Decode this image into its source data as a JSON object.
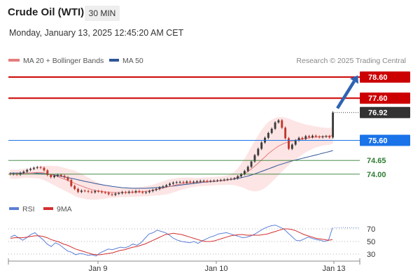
{
  "header": {
    "title": "Crude Oil (WTI)",
    "timeframe": "30 MIN",
    "datetime": "Monday, January 13, 2025 12:45:20 AM CET"
  },
  "legend": {
    "ma20_label": "MA 20 + Bollinger Bands",
    "ma50_label": "MA 50",
    "copyright": "Research © 2025 Trading Central",
    "rsi_label": "RSI",
    "rsi_ma_label": "9MA"
  },
  "colors": {
    "up_candle": "#3d3d3d",
    "down_candle": "#c0392b",
    "ma20": "#e47d7d",
    "ma50": "#2f5597",
    "bollinger_fill": "#fde0e0",
    "resistance": "#cc0000",
    "pivot": "#1a73e8",
    "support": "#2e7d32",
    "forecast_arrow": "#2e62b3",
    "rsi": "#5b7fd6",
    "rsi_ma": "#d32f2f"
  },
  "chart_data": {
    "type": "candlestick",
    "ylim": [
      72.8,
      79.0
    ],
    "x_ticks": [
      "Jan 9",
      "Jan 10",
      "Jan 13"
    ],
    "levels": [
      {
        "value": 78.6,
        "label": "78.60",
        "kind": "resistance"
      },
      {
        "value": 77.6,
        "label": "77.60",
        "kind": "resistance"
      },
      {
        "value": 76.92,
        "label": "76.92",
        "kind": "last"
      },
      {
        "value": 75.6,
        "label": "75.60",
        "kind": "pivot"
      },
      {
        "value": 74.65,
        "label": "74.65",
        "kind": "support"
      },
      {
        "value": 74.0,
        "label": "74.00",
        "kind": "support"
      }
    ],
    "close": [
      74.0,
      74.02,
      73.98,
      74.06,
      74.12,
      74.2,
      74.25,
      74.3,
      74.33,
      74.3,
      74.18,
      73.96,
      73.86,
      73.92,
      73.97,
      73.92,
      73.85,
      73.72,
      73.44,
      73.3,
      73.16,
      73.22,
      73.2,
      73.17,
      73.14,
      73.2,
      73.18,
      73.14,
      73.12,
      73.05,
      73.02,
      73.08,
      73.1,
      73.15,
      73.12,
      73.17,
      73.14,
      73.2,
      73.16,
      73.12,
      73.15,
      73.2,
      73.25,
      73.3,
      73.37,
      73.42,
      73.48,
      73.55,
      73.6,
      73.62,
      73.63,
      73.6,
      73.65,
      73.62,
      73.64,
      73.66,
      73.68,
      73.68,
      73.66,
      73.68,
      73.69,
      73.7,
      73.72,
      73.74,
      73.76,
      73.78,
      73.8,
      73.9,
      74.0,
      74.15,
      74.35,
      74.6,
      74.9,
      75.2,
      75.5,
      75.72,
      75.95,
      76.15,
      76.45,
      76.55,
      76.2,
      75.7,
      75.2,
      75.4,
      75.6,
      75.72,
      75.67,
      75.8,
      75.75,
      75.82,
      75.78,
      75.75,
      75.78,
      75.8,
      75.74,
      76.92
    ],
    "open": [
      74.03,
      74.0,
      74.02,
      73.98,
      74.06,
      74.12,
      74.2,
      74.25,
      74.3,
      74.33,
      74.3,
      74.18,
      73.96,
      73.86,
      73.92,
      73.97,
      73.92,
      73.85,
      73.72,
      73.44,
      73.3,
      73.16,
      73.22,
      73.2,
      73.17,
      73.14,
      73.2,
      73.18,
      73.14,
      73.12,
      73.05,
      73.02,
      73.08,
      73.1,
      73.15,
      73.12,
      73.17,
      73.14,
      73.2,
      73.16,
      73.12,
      73.15,
      73.2,
      73.25,
      73.3,
      73.37,
      73.42,
      73.48,
      73.55,
      73.6,
      73.62,
      73.63,
      73.6,
      73.65,
      73.62,
      73.64,
      73.66,
      73.68,
      73.68,
      73.66,
      73.68,
      73.69,
      73.7,
      73.72,
      73.74,
      73.76,
      73.78,
      73.8,
      73.9,
      74.0,
      74.15,
      74.35,
      74.6,
      74.9,
      75.2,
      75.5,
      75.72,
      75.95,
      76.15,
      76.45,
      76.55,
      76.2,
      75.7,
      75.2,
      75.4,
      75.6,
      75.72,
      75.67,
      75.8,
      75.75,
      75.82,
      75.78,
      75.75,
      75.78,
      75.8,
      75.74
    ],
    "ma20": [
      74.0,
      74.0,
      74.0,
      74.02,
      74.04,
      74.05,
      74.06,
      74.07,
      74.08,
      74.08,
      74.06,
      74.02,
      73.98,
      73.93,
      73.88,
      73.82,
      73.76,
      73.7,
      73.64,
      73.57,
      73.5,
      73.44,
      73.38,
      73.32,
      73.27,
      73.23,
      73.2,
      73.18,
      73.16,
      73.15,
      73.14,
      73.13,
      73.13,
      73.13,
      73.13,
      73.14,
      73.14,
      73.15,
      73.16,
      73.17,
      73.19,
      73.21,
      73.24,
      73.27,
      73.3,
      73.34,
      73.38,
      73.42,
      73.46,
      73.5,
      73.53,
      73.56,
      73.58,
      73.6,
      73.61,
      73.62,
      73.63,
      73.64,
      73.65,
      73.66,
      73.67,
      73.68,
      73.69,
      73.7,
      73.72,
      73.75,
      73.8,
      73.86,
      73.94,
      74.03,
      74.13,
      74.25,
      74.38,
      74.52,
      74.67,
      74.82,
      74.97,
      75.1,
      75.22,
      75.33,
      75.41,
      75.48,
      75.53,
      75.57,
      75.6,
      75.63,
      75.66,
      75.69,
      75.72,
      75.74,
      75.76,
      75.77,
      75.78,
      75.79,
      75.79,
      75.85
    ],
    "ma50": [
      74.05,
      74.05,
      74.05,
      74.05,
      74.05,
      74.05,
      74.05,
      74.05,
      74.04,
      74.03,
      74.02,
      74.0,
      73.98,
      73.96,
      73.93,
      73.9,
      73.87,
      73.84,
      73.8,
      73.77,
      73.73,
      73.7,
      73.66,
      73.63,
      73.6,
      73.56,
      73.53,
      73.5,
      73.47,
      73.45,
      73.42,
      73.4,
      73.38,
      73.36,
      73.35,
      73.34,
      73.33,
      73.33,
      73.33,
      73.33,
      73.33,
      73.34,
      73.35,
      73.36,
      73.37,
      73.38,
      73.4,
      73.42,
      73.44,
      73.46,
      73.48,
      73.5,
      73.52,
      73.54,
      73.56,
      73.58,
      73.6,
      73.62,
      73.63,
      73.65,
      73.66,
      73.68,
      73.7,
      73.71,
      73.73,
      73.75,
      73.77,
      73.8,
      73.83,
      73.87,
      73.91,
      73.96,
      74.01,
      74.07,
      74.13,
      74.19,
      74.25,
      74.31,
      74.37,
      74.43,
      74.48,
      74.53,
      74.58,
      74.63,
      74.67,
      74.71,
      74.75,
      74.79,
      74.83,
      74.87,
      74.91,
      74.95,
      74.99,
      75.03,
      75.07,
      75.12
    ],
    "bb_width": [
      0.22,
      0.22,
      0.22,
      0.22,
      0.22,
      0.22,
      0.24,
      0.26,
      0.28,
      0.3,
      0.34,
      0.38,
      0.42,
      0.46,
      0.5,
      0.52,
      0.54,
      0.56,
      0.58,
      0.6,
      0.6,
      0.58,
      0.55,
      0.52,
      0.48,
      0.44,
      0.4,
      0.36,
      0.32,
      0.28,
      0.26,
      0.24,
      0.22,
      0.22,
      0.22,
      0.22,
      0.22,
      0.22,
      0.22,
      0.23,
      0.24,
      0.25,
      0.26,
      0.28,
      0.3,
      0.32,
      0.34,
      0.34,
      0.33,
      0.32,
      0.3,
      0.28,
      0.26,
      0.24,
      0.22,
      0.2,
      0.2,
      0.2,
      0.2,
      0.2,
      0.2,
      0.2,
      0.2,
      0.21,
      0.22,
      0.26,
      0.32,
      0.42,
      0.55,
      0.7,
      0.88,
      1.05,
      1.2,
      1.32,
      1.42,
      1.48,
      1.5,
      1.48,
      1.44,
      1.38,
      1.3,
      1.2,
      1.1,
      1.0,
      0.9,
      0.82,
      0.74,
      0.66,
      0.6,
      0.55,
      0.5,
      0.46,
      0.43,
      0.41,
      0.4,
      0.4
    ],
    "forecast": {
      "from": 76.92,
      "to": 78.6
    },
    "rsi": {
      "ylim": [
        20,
        80
      ],
      "levels": [
        70,
        50,
        30
      ],
      "rsi": [
        57,
        60,
        56,
        52,
        56,
        61,
        64,
        58,
        53,
        46,
        42,
        48,
        45,
        40,
        35,
        33,
        29,
        31,
        30,
        28,
        29,
        27,
        32,
        35,
        38,
        37,
        39,
        41,
        40,
        42,
        46,
        44,
        48,
        55,
        62,
        64,
        68,
        66,
        64,
        60,
        55,
        52,
        50,
        49,
        48,
        50,
        47,
        51,
        54,
        57,
        59,
        62,
        63,
        64,
        62,
        60,
        58,
        56,
        57,
        59,
        62,
        66,
        70,
        73,
        75,
        76,
        73,
        70,
        64,
        58,
        52,
        51,
        54,
        57,
        55,
        53,
        52,
        50,
        52,
        72
      ],
      "ma9": [
        55,
        56,
        56,
        56,
        57,
        58,
        59,
        59,
        58,
        56,
        53,
        51,
        49,
        46,
        44,
        41,
        38,
        36,
        34,
        32,
        30,
        29,
        29,
        30,
        31,
        32,
        34,
        36,
        37,
        39,
        41,
        42,
        44,
        46,
        49,
        52,
        55,
        58,
        61,
        62,
        63,
        62,
        61,
        59,
        57,
        55,
        53,
        51,
        50,
        50,
        51,
        53,
        55,
        57,
        59,
        60,
        61,
        61,
        60,
        60,
        60,
        60,
        61,
        62,
        64,
        66,
        68,
        70,
        70,
        69,
        67,
        64,
        61,
        59,
        57,
        55,
        54,
        53,
        52,
        53
      ]
    }
  }
}
